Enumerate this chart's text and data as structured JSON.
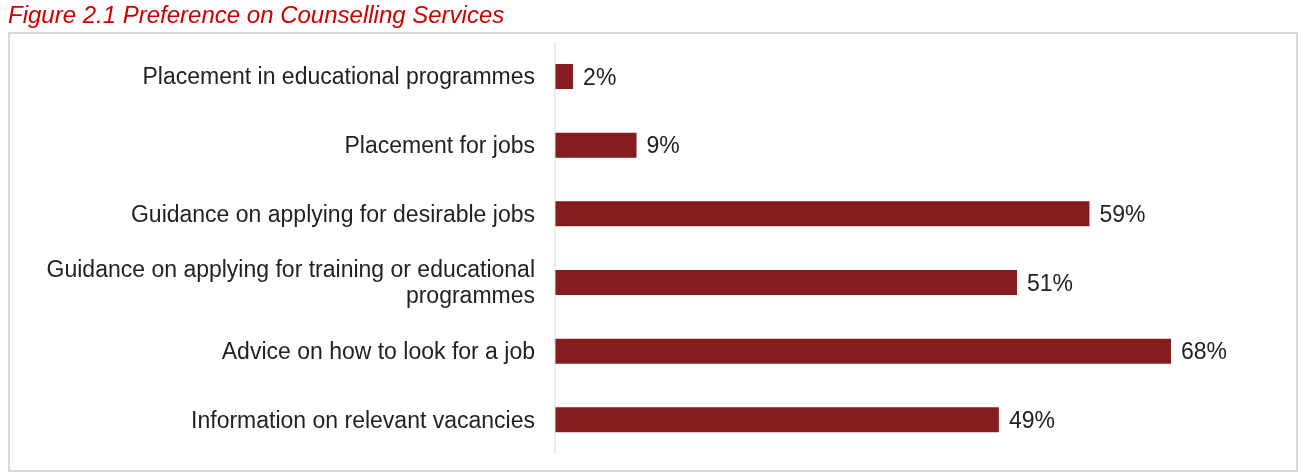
{
  "chart_data": {
    "type": "bar",
    "orientation": "horizontal",
    "title": "Figure 2.1 Preference on Counselling Services",
    "categories": [
      "Placement in educational programmes",
      "Placement for jobs",
      "Guidance on applying for desirable jobs",
      "Guidance on applying for training or educational programmes",
      "Advice on how to look for a job",
      "Information on relevant vacancies"
    ],
    "values": [
      2,
      9,
      59,
      51,
      68,
      49
    ],
    "value_labels": [
      "2%",
      "9%",
      "59%",
      "51%",
      "68%",
      "49%"
    ],
    "color": "#851c1e"
  }
}
